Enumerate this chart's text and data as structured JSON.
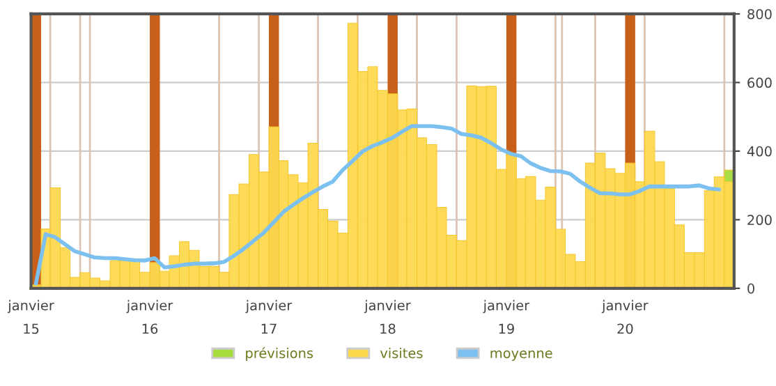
{
  "chart_data": {
    "type": "bar",
    "x": [
      "2015-01",
      "2015-02",
      "2015-03",
      "2015-04",
      "2015-05",
      "2015-06",
      "2015-07",
      "2015-08",
      "2015-09",
      "2015-10",
      "2015-11",
      "2015-12",
      "2016-01",
      "2016-02",
      "2016-03",
      "2016-04",
      "2016-05",
      "2016-06",
      "2016-07",
      "2016-08",
      "2016-09",
      "2016-10",
      "2016-11",
      "2016-12",
      "2017-01",
      "2017-02",
      "2017-03",
      "2017-04",
      "2017-05",
      "2017-06",
      "2017-07",
      "2017-08",
      "2017-09",
      "2017-10",
      "2017-11",
      "2017-12",
      "2018-01",
      "2018-02",
      "2018-03",
      "2018-04",
      "2018-05",
      "2018-06",
      "2018-07",
      "2018-08",
      "2018-09",
      "2018-10",
      "2018-11",
      "2018-12",
      "2019-01",
      "2019-02",
      "2019-03",
      "2019-04",
      "2019-05",
      "2019-06",
      "2019-07",
      "2019-08",
      "2019-09",
      "2019-10",
      "2019-11",
      "2019-12",
      "2020-01",
      "2020-02",
      "2020-03",
      "2020-04",
      "2020-05",
      "2020-06",
      "2020-07",
      "2020-08",
      "2020-09",
      "2020-10",
      "2020-11"
    ],
    "series": [
      {
        "name": "prévisions",
        "color": "#a6dc3c",
        "values": [
          null,
          null,
          null,
          null,
          null,
          null,
          null,
          null,
          null,
          null,
          null,
          null,
          null,
          null,
          null,
          null,
          null,
          null,
          null,
          null,
          null,
          null,
          null,
          null,
          null,
          null,
          null,
          null,
          null,
          null,
          null,
          null,
          null,
          null,
          null,
          null,
          null,
          null,
          null,
          null,
          null,
          null,
          null,
          null,
          null,
          null,
          null,
          null,
          null,
          null,
          null,
          null,
          null,
          null,
          null,
          null,
          null,
          null,
          null,
          null,
          null,
          null,
          null,
          null,
          null,
          null,
          null,
          null,
          null,
          null,
          345
        ]
      },
      {
        "name": "visites",
        "color": "#fdd94e",
        "values": [
          10,
          173,
          293,
          119,
          32,
          46,
          30,
          22,
          81,
          81,
          80,
          47,
          75,
          50,
          95,
          136,
          111,
          64,
          64,
          47,
          273,
          304,
          390,
          339,
          471,
          372,
          331,
          308,
          423,
          230,
          196,
          161,
          773,
          632,
          646,
          577,
          567,
          520,
          523,
          439,
          419,
          236,
          155,
          139,
          590,
          588,
          589,
          347,
          392,
          320,
          326,
          257,
          295,
          172,
          99,
          78,
          365,
          394,
          349,
          335,
          365,
          311,
          458,
          369,
          293,
          185,
          104,
          104,
          285,
          325,
          311
        ]
      },
      {
        "name": "moyenne",
        "type": "line",
        "color": "#7cc0f0",
        "x": [
          "2015-01-16",
          "2015-02-15",
          "2015-03-16",
          "2015-04-16",
          "2015-05-16",
          "2015-06-16",
          "2015-07-16",
          "2015-08-16",
          "2015-09-16",
          "2015-10-16",
          "2015-11-16",
          "2015-12-16",
          "2016-01-16",
          "2016-02-15",
          "2016-03-16",
          "2016-04-16",
          "2016-05-16",
          "2016-06-16",
          "2016-07-16",
          "2016-08-16",
          "2016-09-16",
          "2016-10-16",
          "2016-11-16",
          "2016-12-16",
          "2017-01-16",
          "2017-02-15",
          "2017-03-16",
          "2017-04-16",
          "2017-05-16",
          "2017-06-16",
          "2017-07-16",
          "2017-08-16",
          "2017-09-16",
          "2017-10-16",
          "2017-11-16",
          "2017-12-16",
          "2018-01-16",
          "2018-02-15",
          "2018-03-16",
          "2018-04-16",
          "2018-05-16",
          "2018-06-16",
          "2018-07-16",
          "2018-08-16",
          "2018-09-16",
          "2018-10-16",
          "2018-11-16",
          "2018-12-16",
          "2019-01-16",
          "2019-02-15",
          "2019-03-16",
          "2019-04-16",
          "2019-05-16",
          "2019-06-16",
          "2019-07-16",
          "2019-08-16",
          "2019-09-16",
          "2019-10-16",
          "2019-11-16",
          "2019-12-16",
          "2020-01-16",
          "2020-02-15",
          "2020-03-16",
          "2020-04-16",
          "2020-05-16",
          "2020-06-16",
          "2020-07-16",
          "2020-08-16",
          "2020-09-16",
          "2020-10-16"
        ],
        "values": [
          14,
          158,
          149,
          128,
          108,
          99,
          90,
          88,
          88,
          85,
          82,
          81,
          88,
          61,
          64,
          69,
          72,
          72,
          73,
          77,
          95,
          115,
          139,
          162,
          193,
          223,
          243,
          263,
          280,
          297,
          311,
          345,
          372,
          399,
          415,
          426,
          439,
          457,
          473,
          473,
          473,
          470,
          466,
          450,
          446,
          439,
          423,
          405,
          392,
          385,
          365,
          351,
          342,
          341,
          334,
          311,
          293,
          277,
          277,
          274,
          274,
          284,
          297,
          297,
          297,
          297,
          297,
          300,
          291,
          288
        ]
      }
    ],
    "xlim": [
      "2015-01",
      "2020-12"
    ],
    "xticks": [
      {
        "value": "2015-01",
        "label": "janvier\n15"
      },
      {
        "value": "2016-01",
        "label": "janvier\n16"
      },
      {
        "value": "2017-01",
        "label": "janvier\n17"
      },
      {
        "value": "2018-01",
        "label": "janvier\n18"
      },
      {
        "value": "2019-01",
        "label": "janvier\n19"
      },
      {
        "value": "2020-01",
        "label": "janvier\n20"
      }
    ],
    "ylim": [
      0,
      800
    ],
    "yticks": [
      0,
      200,
      400,
      600,
      800
    ],
    "grid": "y",
    "legend": "bottom",
    "bands": [
      {
        "axis": "x",
        "from": "2015-01",
        "to": "2015-02",
        "color": "#c8601c"
      },
      {
        "axis": "x",
        "from": "2016-01",
        "to": "2016-02",
        "color": "#c8601c"
      },
      {
        "axis": "x",
        "from": "2017-01",
        "to": "2017-02",
        "color": "#c8601c"
      },
      {
        "axis": "x",
        "from": "2018-01",
        "to": "2018-02",
        "color": "#c8601c"
      },
      {
        "axis": "x",
        "from": "2019-01",
        "to": "2019-02",
        "color": "#c8601c"
      },
      {
        "axis": "x",
        "from": "2020-01",
        "to": "2020-02",
        "color": "#c8601c"
      }
    ],
    "ref_lines": [
      {
        "axis": "x",
        "value": "2015-03",
        "color": "#dcc4b4"
      },
      {
        "axis": "x",
        "value": "2015-06",
        "color": "#dcc4b4"
      },
      {
        "axis": "x",
        "value": "2015-07",
        "color": "#dcc4b4"
      },
      {
        "axis": "x",
        "value": "2016-08",
        "color": "#dcc4b4"
      },
      {
        "axis": "x",
        "value": "2016-12",
        "color": "#dcc4b4"
      },
      {
        "axis": "x",
        "value": "2017-06",
        "color": "#dcc4b4"
      },
      {
        "axis": "x",
        "value": "2017-10",
        "color": "#dcc4b4"
      },
      {
        "axis": "x",
        "value": "2018-04",
        "color": "#dcc4b4"
      },
      {
        "axis": "x",
        "value": "2018-08",
        "color": "#dcc4b4"
      },
      {
        "axis": "x",
        "value": "2019-06",
        "color": "#dcc4b4"
      },
      {
        "axis": "x",
        "value": "2019-06-21",
        "color": "#dcc4b4"
      },
      {
        "axis": "x",
        "value": "2019-10",
        "color": "#dcc4b4"
      },
      {
        "axis": "x",
        "value": "2020-03",
        "color": "#dcc4b4"
      },
      {
        "axis": "x",
        "value": "2020-11",
        "color": "#dcc4b4"
      }
    ]
  }
}
